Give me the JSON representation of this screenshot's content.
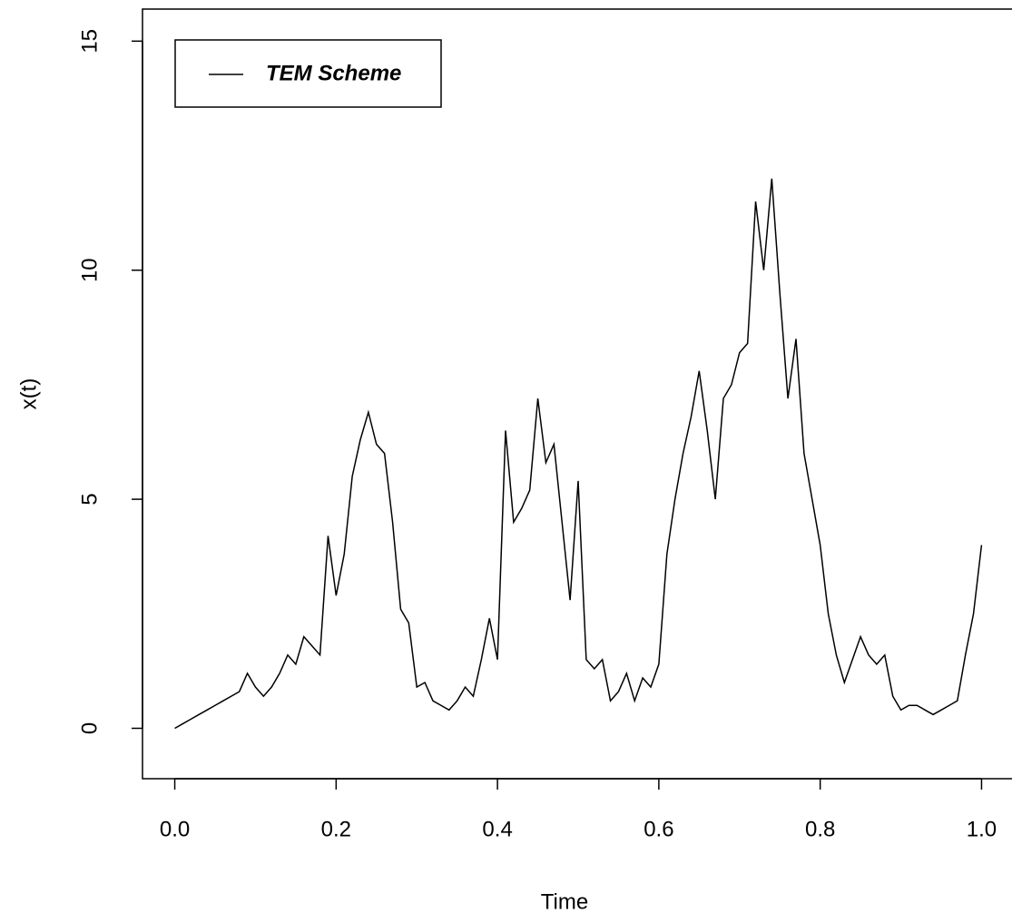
{
  "chart_data": {
    "type": "line",
    "xlabel": "Time",
    "ylabel": "x(t)",
    "x": [
      0,
      0.01,
      0.02,
      0.03,
      0.04,
      0.05,
      0.06,
      0.07,
      0.08,
      0.09,
      0.1,
      0.11,
      0.12,
      0.13,
      0.14,
      0.15,
      0.16,
      0.17,
      0.18,
      0.19,
      0.2,
      0.21,
      0.22,
      0.23,
      0.24,
      0.25,
      0.26,
      0.27,
      0.28,
      0.29,
      0.3,
      0.31,
      0.32,
      0.33,
      0.34,
      0.35,
      0.36,
      0.37,
      0.38,
      0.39,
      0.4,
      0.41,
      0.42,
      0.43,
      0.44,
      0.45,
      0.46,
      0.47,
      0.48,
      0.49,
      0.5,
      0.51,
      0.52,
      0.53,
      0.54,
      0.55,
      0.56,
      0.57,
      0.58,
      0.59,
      0.6,
      0.61,
      0.62,
      0.63,
      0.64,
      0.65,
      0.66,
      0.67,
      0.68,
      0.69,
      0.7,
      0.71,
      0.72,
      0.73,
      0.74,
      0.75,
      0.76,
      0.77,
      0.78,
      0.79,
      0.8,
      0.81,
      0.82,
      0.83,
      0.84,
      0.85,
      0.86,
      0.87,
      0.88,
      0.89,
      0.9,
      0.91,
      0.92,
      0.93,
      0.94,
      0.95,
      0.96,
      0.97,
      0.98,
      0.99,
      1
    ],
    "series": [
      {
        "name": "TEM Scheme",
        "color": "#000000",
        "values": [
          0,
          0.1,
          0.2,
          0.3,
          0.4,
          0.5,
          0.6,
          0.7,
          0.8,
          1.2,
          0.9,
          0.7,
          0.9,
          1.2,
          1.6,
          1.4,
          2.0,
          1.8,
          1.6,
          4.2,
          2.9,
          3.8,
          5.5,
          6.3,
          6.9,
          6.2,
          6.0,
          4.5,
          2.6,
          2.3,
          0.9,
          1.0,
          0.6,
          0.5,
          0.4,
          0.6,
          0.9,
          0.7,
          1.5,
          2.4,
          1.5,
          6.5,
          4.5,
          4.8,
          5.2,
          7.2,
          5.8,
          6.2,
          4.5,
          2.8,
          5.4,
          1.5,
          1.3,
          1.5,
          0.6,
          0.8,
          1.2,
          0.6,
          1.1,
          0.9,
          1.4,
          3.8,
          5.0,
          6.0,
          6.8,
          7.8,
          6.5,
          5.0,
          7.2,
          7.5,
          8.2,
          8.4,
          11.5,
          10.0,
          12.0,
          9.5,
          7.2,
          8.5,
          6.0,
          5.0,
          4.0,
          2.5,
          1.6,
          1.0,
          1.5,
          2.0,
          1.6,
          1.4,
          1.6,
          0.7,
          0.4,
          0.5,
          0.5,
          0.4,
          0.3,
          0.4,
          0.5,
          0.6,
          1.6,
          2.5,
          4.0
        ]
      }
    ],
    "xlim": [
      -0.04,
      1.04
    ],
    "ylim": [
      -1.1,
      15.7
    ],
    "xticks": [
      {
        "value": 0,
        "label": "0.0"
      },
      0.2,
      0.4,
      0.6,
      0.8,
      {
        "value": 1,
        "label": "1.0"
      }
    ],
    "yticks": [
      0,
      5,
      10,
      15
    ],
    "legend": "top-left"
  }
}
